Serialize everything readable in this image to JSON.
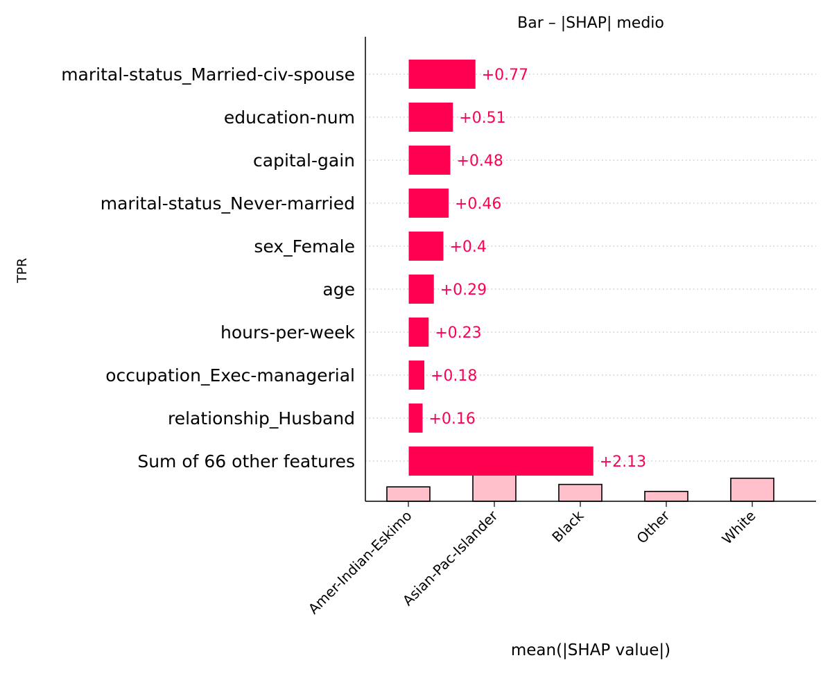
{
  "chart_data": {
    "type": "bar",
    "title": "Bar – |SHAP| medio",
    "ylabel": "TPR",
    "xlabel": "mean(|SHAP value|)",
    "shap_bars": {
      "orientation": "horizontal",
      "features": [
        "marital-status_Married-civ-spouse",
        "education-num",
        "capital-gain",
        "marital-status_Never-married",
        "sex_Female",
        "age",
        "hours-per-week",
        "occupation_Exec-managerial",
        "relationship_Husband",
        "Sum of 66 other features"
      ],
      "values": [
        0.77,
        0.51,
        0.48,
        0.46,
        0.4,
        0.29,
        0.23,
        0.18,
        0.16,
        2.13
      ],
      "value_labels": [
        "+0.77",
        "+0.51",
        "+0.48",
        "+0.46",
        "+0.4",
        "+0.29",
        "+0.23",
        "+0.18",
        "+0.16",
        "+2.13"
      ],
      "xlim": [
        -0.5,
        4.7
      ],
      "color": "#ff0051",
      "grid": "dotted horizontal"
    },
    "tpr_bars": {
      "orientation": "vertical",
      "categories": [
        "Amer-Indian-Eskimo",
        "Asian-Pac-Islander",
        "Black",
        "Other",
        "White"
      ],
      "values": [
        0.35,
        0.64,
        0.41,
        0.24,
        0.56
      ],
      "ylim": [
        0,
        0.64
      ],
      "color": "#ffc0cb",
      "edge_color": "#000000"
    }
  }
}
